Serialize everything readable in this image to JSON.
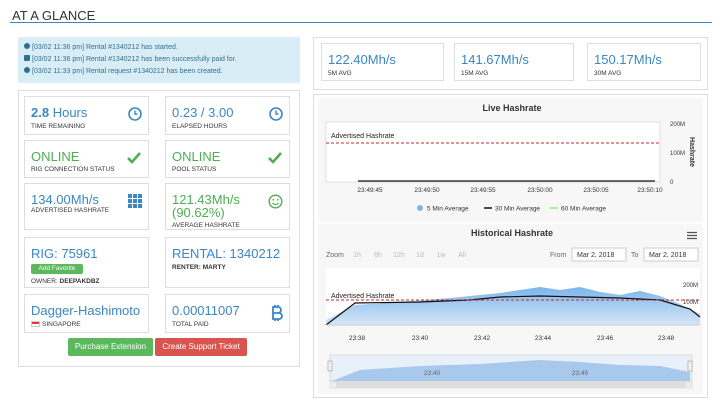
{
  "header": {
    "title": "AT A GLANCE"
  },
  "notifications": [
    "[03/02 11:36 pm] Rental #1340212 has started.",
    "[03/02 11:36 pm] Rental #1340212 has been successfully paid for.",
    "[03/02 11:33 pm] Rental request #1340212 has been created."
  ],
  "cards": {
    "time_remaining": {
      "value": "2.8",
      "unit": "Hours",
      "label": "TIME REMAINING"
    },
    "elapsed": {
      "value": "0.23 / 3.00",
      "label": "ELAPSED HOURS"
    },
    "rig_status": {
      "value": "ONLINE",
      "label": "RIG CONNECTION STATUS"
    },
    "pool_status": {
      "value": "ONLINE",
      "label": "POOL STATUS"
    },
    "advertised": {
      "value": "134.00Mh/s",
      "label": "ADVERTISED HASHRATE"
    },
    "average": {
      "value": "121.43Mh/s",
      "percent": "(90.62%)",
      "label": "AVERAGE HASHRATE"
    },
    "rig": {
      "value": "RIG: 75961",
      "button": "Add Favorite",
      "owner_label": "OWNER:",
      "owner": "DEEPAKDBZ"
    },
    "rental": {
      "value": "RENTAL: 1340212",
      "renter": "RENTER: MARTY"
    },
    "algorithm": {
      "value": "Dagger-Hashimoto",
      "region": "SINGAPORE"
    },
    "paid": {
      "value": "0.00011007",
      "label": "TOTAL PAID"
    }
  },
  "buttons": [
    "Purchase Extension",
    "Create Support Ticket"
  ],
  "stats": [
    {
      "value": "122.40Mh/s",
      "label": "5M AVG"
    },
    {
      "value": "141.67Mh/s",
      "label": "15M AVG"
    },
    {
      "value": "150.17Mh/s",
      "label": "30M AVG"
    }
  ],
  "live_chart": {
    "title": "Live Hashrate",
    "y_axis_title": "Hashrate",
    "yticks": [
      "200M",
      "100M",
      "0"
    ],
    "advertised_label": "Advertised Hashrate",
    "xticks": [
      "23:49:45",
      "23:49:50",
      "23:49:55",
      "23:50:00",
      "23:50:05",
      "23:50:10"
    ],
    "legend": [
      "5 Min Average",
      "30 Min Average",
      "60 Min Average"
    ]
  },
  "historical_chart": {
    "title": "Historical Hashrate",
    "zoom_label": "Zoom",
    "zoom_options": [
      "1h",
      "6h",
      "12h",
      "1d",
      "1w",
      "All"
    ],
    "from_label": "From",
    "from": "Mar 2, 2018",
    "to_label": "To",
    "to": "Mar 2, 2018",
    "yticks": [
      "200M",
      "100M"
    ],
    "advertised_label": "Advertised Hashrate",
    "xticks": [
      "23:38",
      "23:40",
      "23:42",
      "23:44",
      "23:46",
      "23:48"
    ],
    "navigator_ticks": [
      "23:40",
      "23:45"
    ]
  }
}
